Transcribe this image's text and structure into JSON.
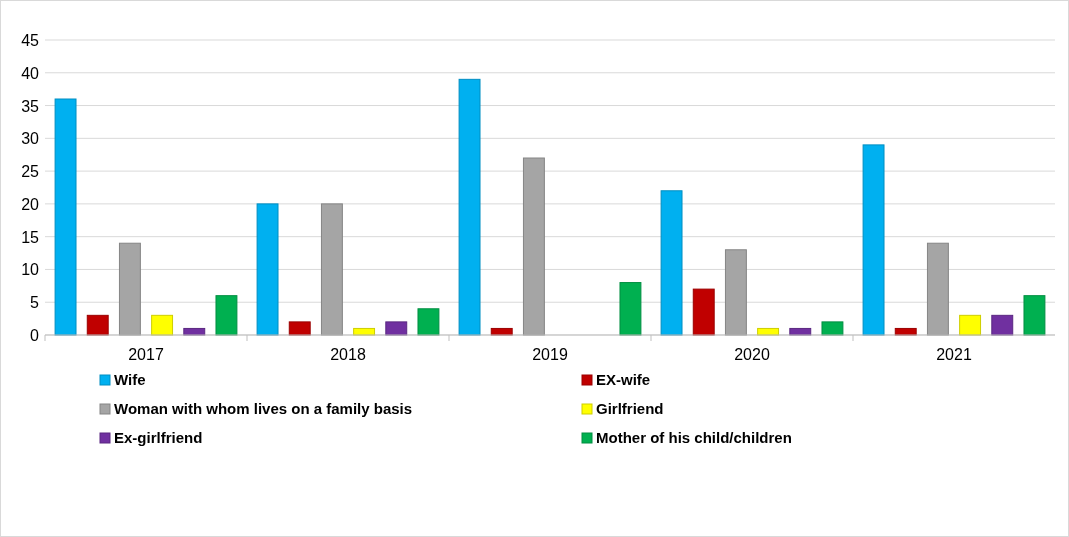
{
  "chart_data": {
    "type": "bar",
    "categories": [
      "2017",
      "2018",
      "2019",
      "2020",
      "2021"
    ],
    "series": [
      {
        "name": "Wife",
        "color": "#00b0f0",
        "values": [
          36,
          20,
          39,
          22,
          29
        ]
      },
      {
        "name": "EX-wife",
        "color": "#c00000",
        "values": [
          3,
          2,
          1,
          7,
          1
        ]
      },
      {
        "name": "Woman with whom lives on a family basis",
        "color": "#a5a5a5",
        "values": [
          14,
          20,
          27,
          13,
          14
        ]
      },
      {
        "name": "Girlfriend",
        "color": "#ffff00",
        "values": [
          3,
          1,
          0,
          1,
          3
        ]
      },
      {
        "name": "Ex-girlfriend",
        "color": "#7030a0",
        "values": [
          1,
          2,
          0,
          1,
          3
        ]
      },
      {
        "name": "Mother of his child/children",
        "color": "#00b050",
        "values": [
          6,
          4,
          8,
          2,
          6
        ]
      }
    ],
    "ylim": [
      0,
      45
    ],
    "yticks": [
      0,
      5,
      10,
      15,
      20,
      25,
      30,
      35,
      40,
      45
    ],
    "grid": "y",
    "legend": "bottom"
  }
}
